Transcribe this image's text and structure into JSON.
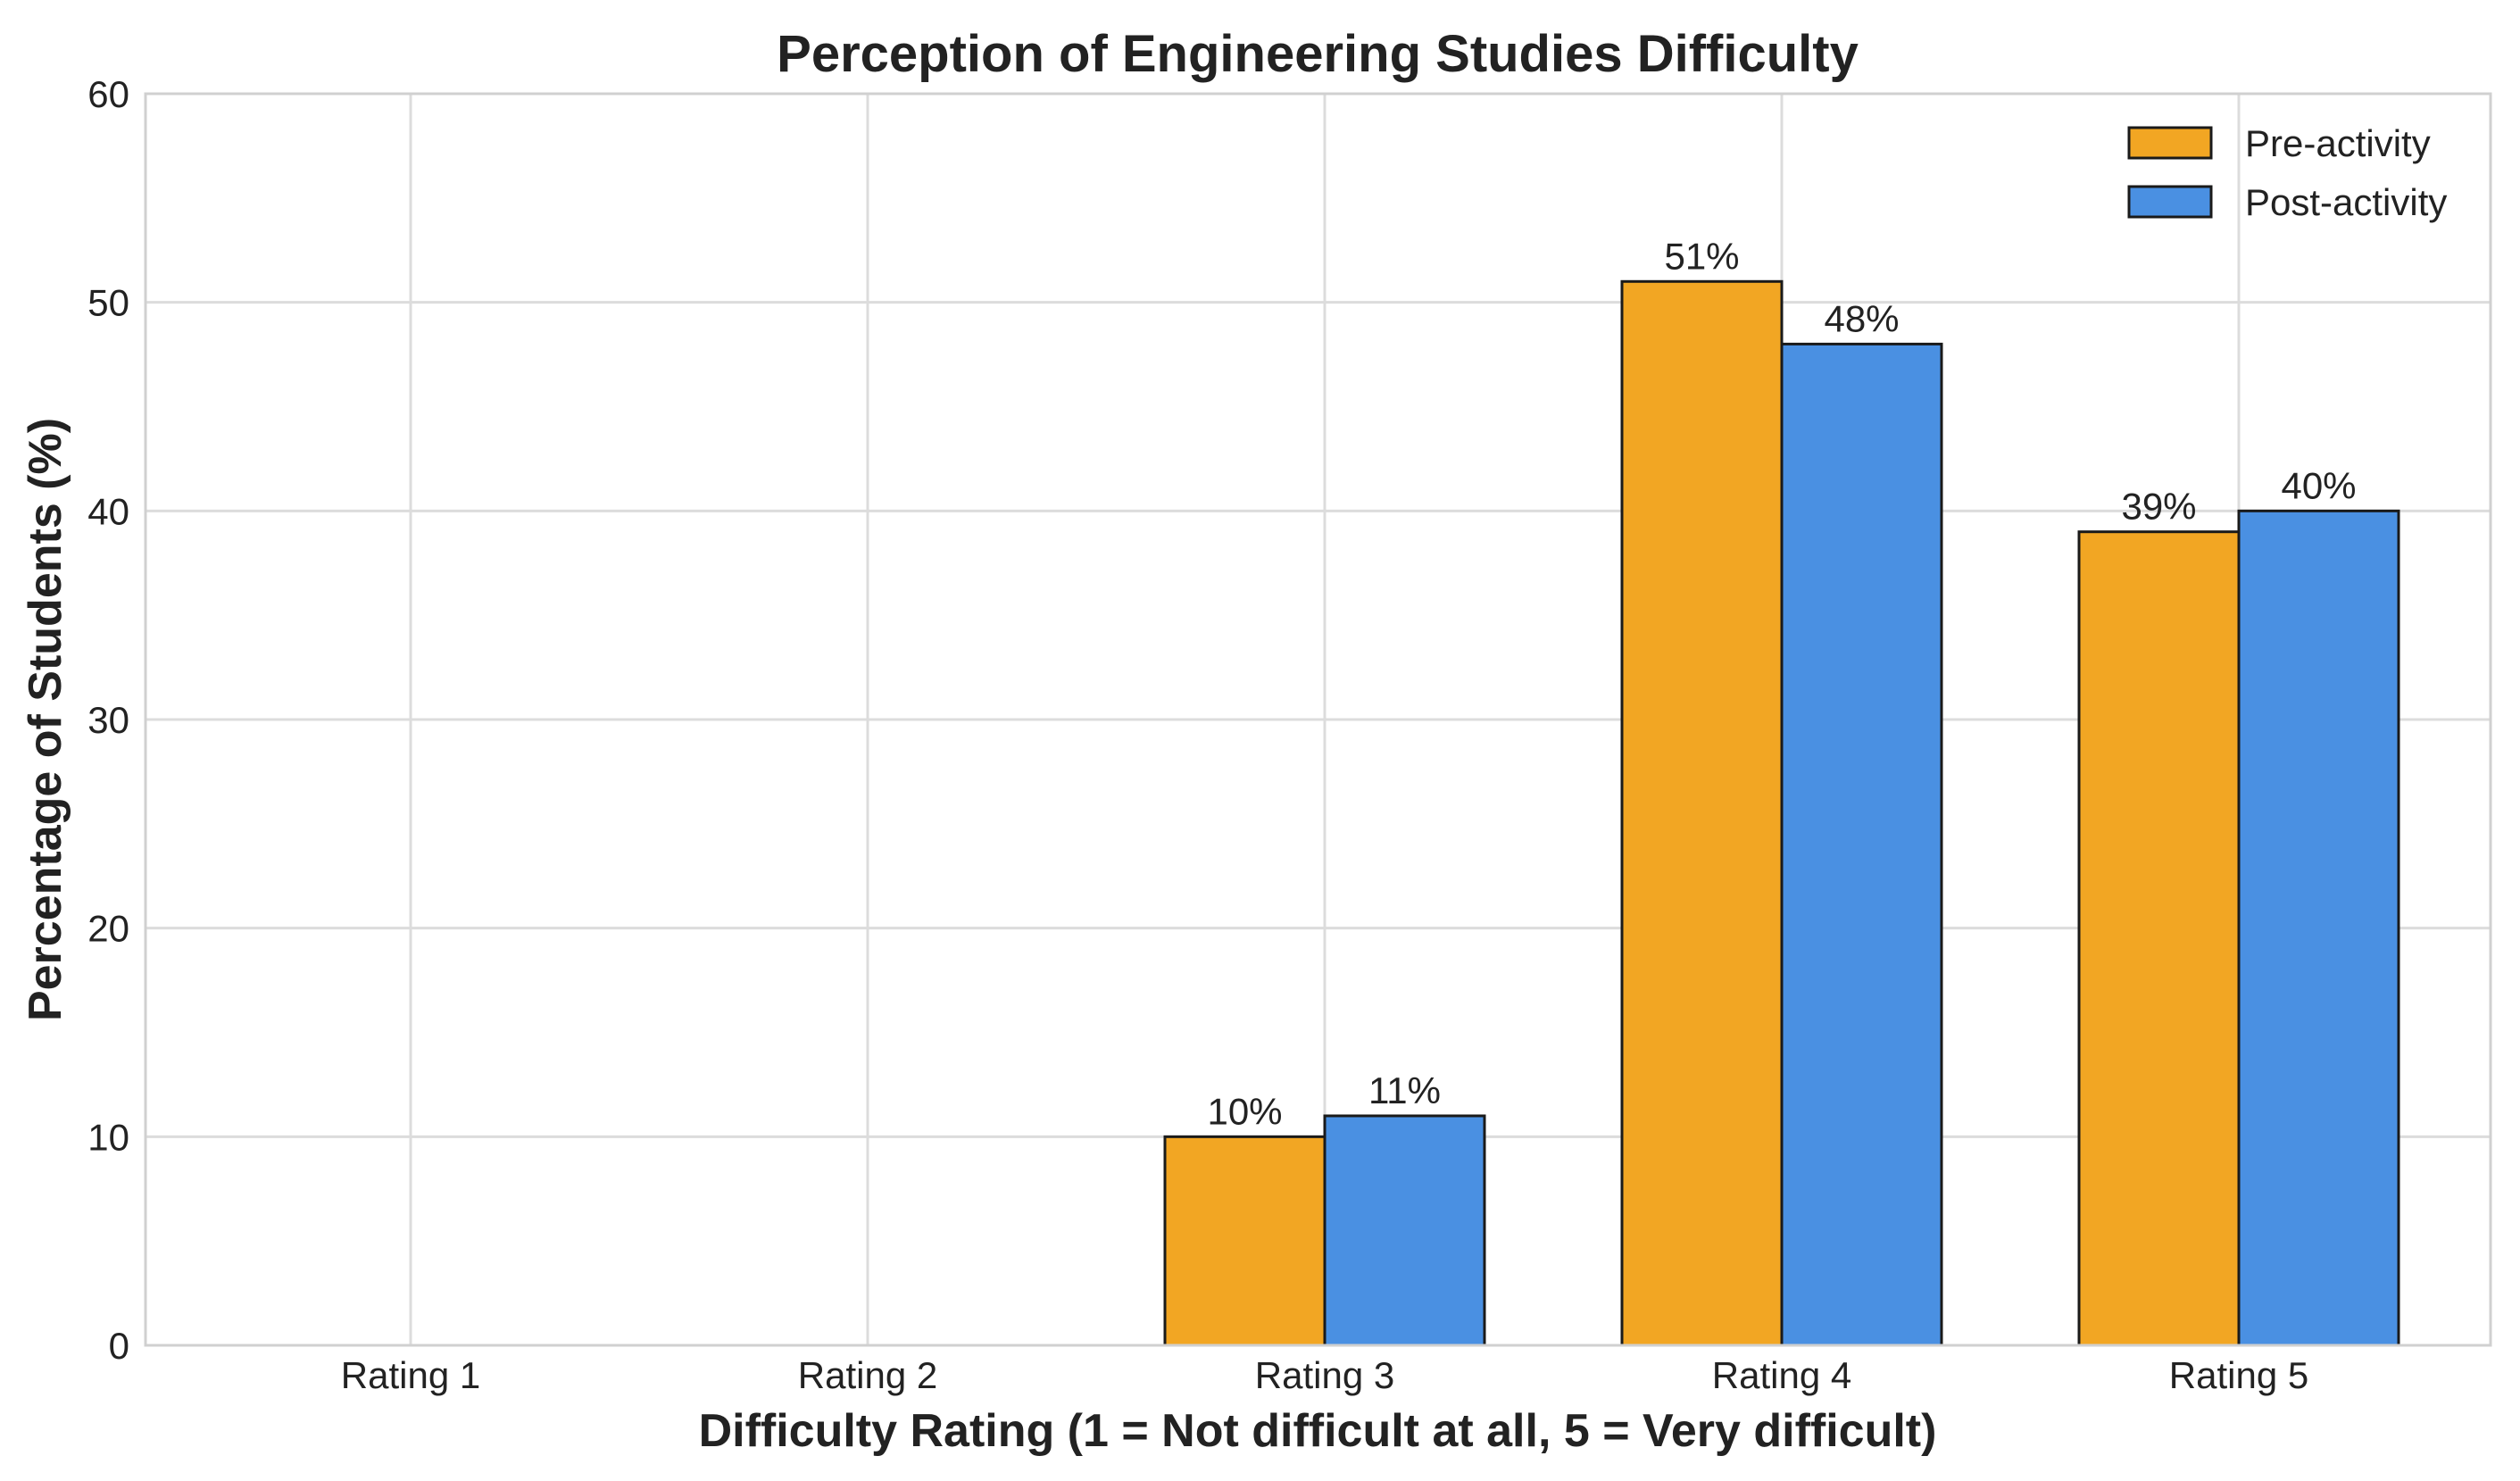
{
  "chart_data": {
    "type": "bar",
    "title": "Perception of Engineering Studies Difficulty",
    "xlabel": "Difficulty Rating (1 = Not difficult at all, 5 = Very difficult)",
    "ylabel": "Percentage of Students (%)",
    "categories": [
      "Rating 1",
      "Rating 2",
      "Rating 3",
      "Rating 4",
      "Rating 5"
    ],
    "ylim": [
      0,
      60
    ],
    "yticks": [
      0,
      10,
      20,
      30,
      40,
      50,
      60
    ],
    "grid": true,
    "legend_position": "top-right",
    "series": [
      {
        "name": "Pre-activity",
        "color": "#F2A623",
        "values": [
          0,
          0,
          10,
          51,
          39
        ],
        "labels": [
          "",
          "",
          "10%",
          "51%",
          "39%"
        ]
      },
      {
        "name": "Post-activity",
        "color": "#4A90E2",
        "values": [
          0,
          0,
          11,
          48,
          40
        ],
        "labels": [
          "",
          "",
          "11%",
          "48%",
          "40%"
        ]
      }
    ]
  }
}
